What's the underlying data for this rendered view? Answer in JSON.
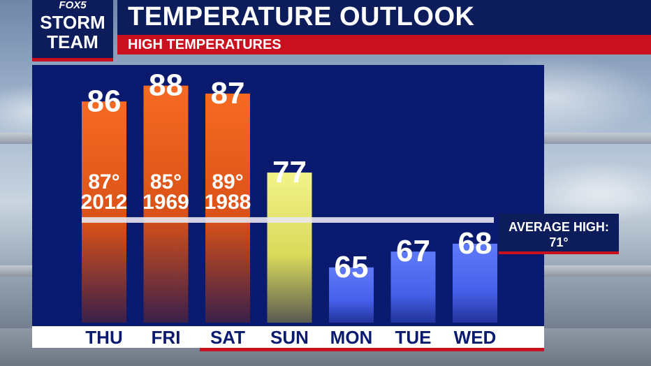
{
  "header": {
    "title": "TEMPERATURE OUTLOOK",
    "subtitle": "HIGH TEMPERATURES"
  },
  "logo": {
    "brand": "FOX5",
    "line1": "STORM",
    "line2": "TEAM"
  },
  "average": {
    "label": "AVERAGE HIGH:",
    "value_text": "71°",
    "value": 71
  },
  "colors": {
    "hot": "#f2621d",
    "warm": "#e6e86a",
    "cool": "#4e68f0",
    "panel": "#0a1a6e",
    "brand_red": "#c8101e",
    "brand_navy": "#0d1d5c"
  },
  "chart_data": {
    "type": "bar",
    "title": "TEMPERATURE OUTLOOK",
    "subtitle": "HIGH TEMPERATURES",
    "categories": [
      "THU",
      "FRI",
      "SAT",
      "SUN",
      "MON",
      "TUE",
      "WED"
    ],
    "values": [
      86,
      88,
      87,
      77,
      65,
      67,
      68
    ],
    "value_labels": [
      "86",
      "88",
      "87",
      "77",
      "65",
      "67",
      "68"
    ],
    "bar_colors": [
      "hot",
      "hot",
      "hot",
      "warm",
      "cool",
      "cool",
      "cool"
    ],
    "records": [
      {
        "category": "THU",
        "temp": "87°",
        "year": "2012"
      },
      {
        "category": "FRI",
        "temp": "85°",
        "year": "1969"
      },
      {
        "category": "SAT",
        "temp": "89°",
        "year": "1988"
      }
    ],
    "reference_line": {
      "label": "AVERAGE HIGH:",
      "value": 71
    },
    "ylim": [
      58,
      90
    ],
    "grid": false,
    "xlabel": "",
    "ylabel": ""
  }
}
